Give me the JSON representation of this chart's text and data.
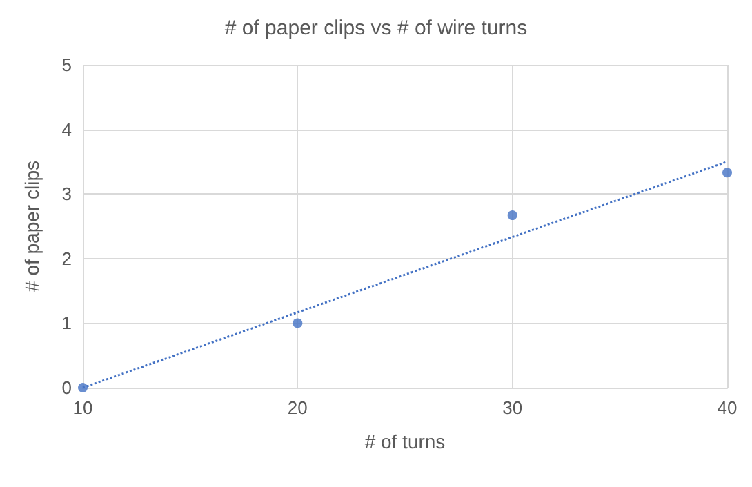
{
  "chart_data": {
    "type": "scatter",
    "title": "# of paper clips vs # of wire turns",
    "xlabel": "# of turns",
    "ylabel": "# of paper clips",
    "xlim": [
      10,
      40
    ],
    "xticks": [
      10,
      20,
      30,
      40
    ],
    "ylim": [
      0,
      5
    ],
    "yticks": [
      0,
      1,
      2,
      3,
      4,
      5
    ],
    "grid": true,
    "series": [
      {
        "color": "#4472c4",
        "marker": "circle",
        "x": [
          10,
          20,
          30,
          40
        ],
        "values": [
          0,
          1,
          2.67,
          3.33
        ]
      },
      {
        "type": "line",
        "color": "#4472c4",
        "marker": "none",
        "line_style": "dotted",
        "x": [
          10,
          40
        ],
        "values": [
          0,
          3.5
        ]
      }
    ]
  }
}
